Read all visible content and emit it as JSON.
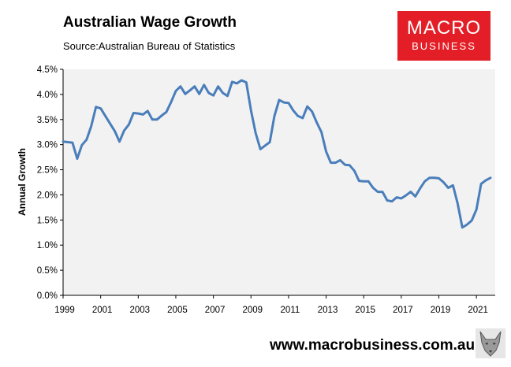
{
  "header": {
    "title": "Australian Wage Growth",
    "subtitle": "Source:Australian Bureau of Statistics"
  },
  "logo": {
    "line1": "MACRO",
    "line2": "BUSINESS",
    "color": "#e41e26"
  },
  "footer": {
    "website": "www.macrobusiness.com.au"
  },
  "chart_data": {
    "type": "line",
    "title": "Australian Wage Growth",
    "ylabel": "Annual Growth",
    "xlabel": "",
    "xlim": [
      1999,
      2022
    ],
    "ylim": [
      0,
      4.5
    ],
    "grid": false,
    "legend": "none",
    "plot_background": "#f2f2f2",
    "line_color": "#4a7ebb",
    "x_ticks": [
      1999,
      2001,
      2003,
      2005,
      2007,
      2009,
      2011,
      2013,
      2015,
      2017,
      2019,
      2021
    ],
    "x_tick_labels": [
      "1999",
      "2001",
      "2003",
      "2005",
      "2007",
      "2009",
      "2011",
      "2013",
      "2015",
      "2017",
      "2019",
      "2021"
    ],
    "y_ticks": [
      0,
      0.5,
      1.0,
      1.5,
      2.0,
      2.5,
      3.0,
      3.5,
      4.0,
      4.5
    ],
    "y_tick_labels": [
      "0.0%",
      "0.5%",
      "1.0%",
      "1.5%",
      "2.0%",
      "2.5%",
      "3.0%",
      "3.5%",
      "4.0%",
      "4.5%"
    ],
    "series": [
      {
        "x": [
          1999.0,
          1999.25,
          1999.5,
          1999.75,
          2000.0,
          2000.25,
          2000.5,
          2000.75,
          2001.0,
          2001.25,
          2001.5,
          2001.75,
          2002.0,
          2002.25,
          2002.5,
          2002.75,
          2003.0,
          2003.25,
          2003.5,
          2003.75,
          2004.0,
          2004.25,
          2004.5,
          2004.75,
          2005.0,
          2005.25,
          2005.5,
          2005.75,
          2006.0,
          2006.25,
          2006.5,
          2006.75,
          2007.0,
          2007.25,
          2007.5,
          2007.75,
          2008.0,
          2008.25,
          2008.5,
          2008.75,
          2009.0,
          2009.25,
          2009.5,
          2009.75,
          2010.0,
          2010.25,
          2010.5,
          2010.75,
          2011.0,
          2011.25,
          2011.5,
          2011.75,
          2012.0,
          2012.25,
          2012.5,
          2012.75,
          2013.0,
          2013.25,
          2013.5,
          2013.75,
          2014.0,
          2014.25,
          2014.5,
          2014.75,
          2015.0,
          2015.25,
          2015.5,
          2015.75,
          2016.0,
          2016.25,
          2016.5,
          2016.75,
          2017.0,
          2017.25,
          2017.5,
          2017.75,
          2018.0,
          2018.25,
          2018.5,
          2018.75,
          2019.0,
          2019.25,
          2019.5,
          2019.75,
          2020.0,
          2020.25,
          2020.5,
          2020.75,
          2021.0,
          2021.25,
          2021.5,
          2021.75
        ],
        "y": [
          3.06,
          3.05,
          3.04,
          2.72,
          2.99,
          3.1,
          3.37,
          3.75,
          3.72,
          3.57,
          3.42,
          3.27,
          3.06,
          3.28,
          3.4,
          3.63,
          3.62,
          3.6,
          3.67,
          3.5,
          3.5,
          3.58,
          3.65,
          3.85,
          4.07,
          4.16,
          4.01,
          4.08,
          4.16,
          4.01,
          4.19,
          4.03,
          3.98,
          4.16,
          4.03,
          3.97,
          4.25,
          4.22,
          4.28,
          4.24,
          3.68,
          3.23,
          2.91,
          2.98,
          3.05,
          3.57,
          3.89,
          3.84,
          3.83,
          3.68,
          3.57,
          3.53,
          3.76,
          3.66,
          3.44,
          3.25,
          2.86,
          2.64,
          2.64,
          2.69,
          2.6,
          2.59,
          2.48,
          2.28,
          2.27,
          2.27,
          2.14,
          2.06,
          2.06,
          1.89,
          1.87,
          1.95,
          1.93,
          1.99,
          2.06,
          1.97,
          2.13,
          2.27,
          2.34,
          2.34,
          2.33,
          2.25,
          2.14,
          2.19,
          1.83,
          1.35,
          1.41,
          1.49,
          1.71,
          2.22,
          2.29,
          2.34
        ]
      }
    ]
  }
}
